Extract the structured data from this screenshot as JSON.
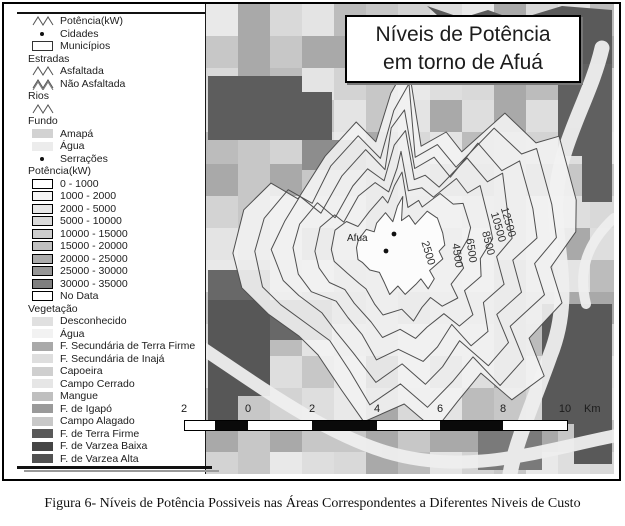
{
  "map": {
    "title_line1": "Níveis de Potência",
    "title_line2": "em torno de Afuá",
    "town_label": "Afua",
    "contour_labels": [
      "2500",
      "4500",
      "6500",
      "8500",
      "10500",
      "12500"
    ]
  },
  "legend": {
    "rows": [
      {
        "kind": "symbol",
        "icon": "zigzag",
        "label": "Potência(kW)"
      },
      {
        "kind": "symbol",
        "icon": "dot",
        "label": "Cidades"
      },
      {
        "kind": "symbol",
        "icon": "rect",
        "label": "Municípios"
      },
      {
        "kind": "header",
        "label": "Estradas"
      },
      {
        "kind": "symbol",
        "icon": "zigzag",
        "label": "Asfaltada"
      },
      {
        "kind": "symbol",
        "icon": "zigzag-double",
        "label": "Não Asfaltada"
      },
      {
        "kind": "header",
        "label": "Rios"
      },
      {
        "kind": "symbol",
        "icon": "zigzag",
        "label": ""
      },
      {
        "kind": "header",
        "label": "Fundo"
      },
      {
        "kind": "swatch",
        "color": "#d2d2d2",
        "outlined": false,
        "label": "Amapá"
      },
      {
        "kind": "swatch",
        "color": "#ececec",
        "outlined": false,
        "label": "Água"
      },
      {
        "kind": "symbol",
        "icon": "dot",
        "label": "Serrações"
      },
      {
        "kind": "header",
        "label": "Potência(kW)"
      },
      {
        "kind": "swatch",
        "color": "#ffffff",
        "outlined": true,
        "label": "0 - 1000"
      },
      {
        "kind": "swatch",
        "color": "#f4f4f4",
        "outlined": true,
        "label": "1000 - 2000"
      },
      {
        "kind": "swatch",
        "color": "#e7e7e7",
        "outlined": true,
        "label": "2000 - 5000"
      },
      {
        "kind": "swatch",
        "color": "#dadada",
        "outlined": true,
        "label": "5000 - 10000"
      },
      {
        "kind": "swatch",
        "color": "#cdcdcd",
        "outlined": true,
        "label": "10000 - 15000"
      },
      {
        "kind": "swatch",
        "color": "#c0c0c0",
        "outlined": true,
        "label": "15000 - 20000"
      },
      {
        "kind": "swatch",
        "color": "#ababab",
        "outlined": true,
        "label": "20000 - 25000"
      },
      {
        "kind": "swatch",
        "color": "#969696",
        "outlined": true,
        "label": "25000 - 30000"
      },
      {
        "kind": "swatch",
        "color": "#7f7f7f",
        "outlined": true,
        "label": "30000 - 35000"
      },
      {
        "kind": "swatch",
        "color": "#ffffff",
        "outlined": true,
        "label": "No Data"
      },
      {
        "kind": "header",
        "label": "Vegetação"
      },
      {
        "kind": "swatch",
        "color": "#e0e0e0",
        "outlined": false,
        "label": "Desconhecido"
      },
      {
        "kind": "swatch",
        "color": "#f2f2f2",
        "outlined": false,
        "label": "Água"
      },
      {
        "kind": "swatch",
        "color": "#a9a9a9",
        "outlined": false,
        "label": "F. Secundária de Terra Firme"
      },
      {
        "kind": "swatch",
        "color": "#dedede",
        "outlined": false,
        "label": "F. Secundária de Inajá"
      },
      {
        "kind": "swatch",
        "color": "#cfcfcf",
        "outlined": false,
        "label": "Capoeira"
      },
      {
        "kind": "swatch",
        "color": "#e6e6e6",
        "outlined": false,
        "label": "Campo Cerrado"
      },
      {
        "kind": "swatch",
        "color": "#bfbfbf",
        "outlined": false,
        "label": "Mangue"
      },
      {
        "kind": "swatch",
        "color": "#9a9a9a",
        "outlined": false,
        "label": "F. de Igapó"
      },
      {
        "kind": "swatch",
        "color": "#c8c8c8",
        "outlined": false,
        "label": "Campo Alagado"
      },
      {
        "kind": "swatch",
        "color": "#595959",
        "outlined": false,
        "label": "F. de Terra Firme"
      },
      {
        "kind": "swatch",
        "color": "#454545",
        "outlined": false,
        "label": "F. de Varzea Baixa"
      },
      {
        "kind": "swatch",
        "color": "#525252",
        "outlined": false,
        "label": "F. de Varzea Alta"
      }
    ]
  },
  "scalebar": {
    "tick_labels": [
      "2",
      "0",
      "2",
      "4",
      "6",
      "8",
      "10"
    ],
    "unit": "Km"
  },
  "caption": "Figura 6- Níveis de Potência Possiveis nas Áreas Correspondentes a Diferentes Niveis de Custo",
  "colors": {
    "contour_line": "#4f4f4f",
    "dark_vegetation": "#5a5a5a",
    "river": "#efefef"
  }
}
